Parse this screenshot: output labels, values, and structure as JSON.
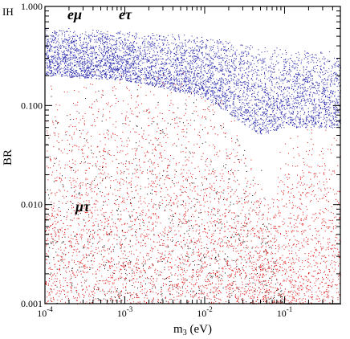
{
  "corner_label": "IH",
  "chart_data": {
    "type": "scatter",
    "xlabel": "m3 (eV)",
    "ylabel": "BR",
    "xscale": "log",
    "yscale": "log",
    "xlim": [
      0.0001,
      0.5
    ],
    "ylim": [
      0.001,
      1.0
    ],
    "x_ticks": [
      {
        "value": 0.0001,
        "base": "10",
        "exp": "-4"
      },
      {
        "value": 0.001,
        "base": "10",
        "exp": "-3"
      },
      {
        "value": 0.01,
        "base": "10",
        "exp": "-2"
      },
      {
        "value": 0.1,
        "base": "10",
        "exp": "-1"
      }
    ],
    "y_ticks": [
      {
        "value": 0.001,
        "label": "0.001"
      },
      {
        "value": 0.01,
        "label": "0.010"
      },
      {
        "value": 0.1,
        "label": "0.100"
      },
      {
        "value": 1.0,
        "label": "1.000"
      }
    ],
    "series": [
      {
        "name": "eμ",
        "color": "#000000",
        "upper_envelope": [
          [
            0.0001,
            0.22
          ],
          [
            0.005,
            0.2
          ],
          [
            0.02,
            0.1
          ],
          [
            0.05,
            0.03
          ],
          [
            0.07,
            0.004
          ],
          [
            0.1,
            0.001
          ]
        ]
      },
      {
        "name": "eτ",
        "color": "#2222aa",
        "band": [
          [
            0.0001,
            0.2,
            0.62
          ],
          [
            0.001,
            0.18,
            0.58
          ],
          [
            0.01,
            0.12,
            0.5
          ],
          [
            0.05,
            0.05,
            0.4
          ],
          [
            0.1,
            0.06,
            0.38
          ],
          [
            0.5,
            0.06,
            0.35
          ]
        ]
      },
      {
        "name": "μτ",
        "color": "#dd1111",
        "upper_envelope": [
          [
            0.0001,
            0.25
          ],
          [
            0.005,
            0.23
          ],
          [
            0.02,
            0.12
          ],
          [
            0.04,
            0.03
          ],
          [
            0.055,
            0.012
          ],
          [
            0.1,
            0.05
          ],
          [
            0.5,
            0.09
          ]
        ]
      }
    ],
    "series_labels": [
      {
        "text": "eμ",
        "color": "#000000"
      },
      {
        "text": "eτ",
        "color": "#1f1fb4"
      },
      {
        "text": "μτ",
        "color": "#e01010"
      }
    ]
  }
}
